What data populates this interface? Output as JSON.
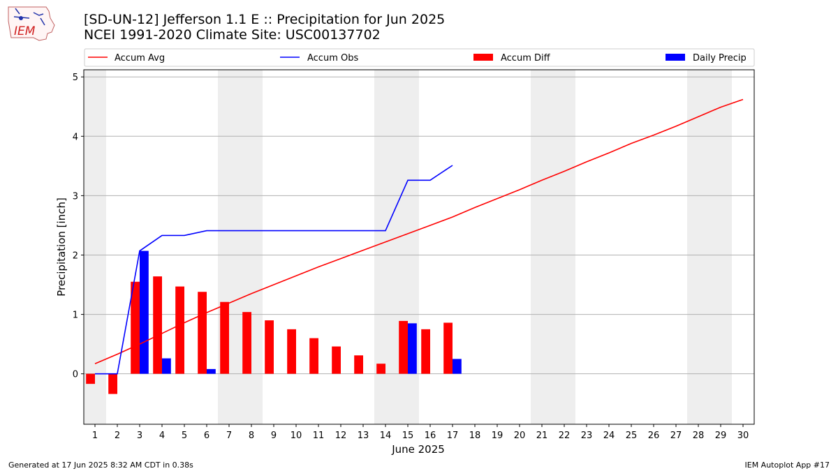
{
  "header": {
    "title_line1": "[SD-UN-12] Jefferson 1.1 E :: Precipitation for Jun 2025",
    "title_line2": "NCEI 1991-2020 Climate Site: USC00137702",
    "logo_text": "IEM"
  },
  "footer": {
    "left": "Generated at 17 Jun 2025 8:32 AM CDT in 0.38s",
    "right": "IEM Autoplot App #17"
  },
  "colors": {
    "avg": "#ff0000",
    "obs": "#0000ff",
    "diff": "#ff0000",
    "daily": "#0000ff",
    "weekend_shade": "#eeeeee",
    "grid": "#b0b0b0"
  },
  "chart_data": {
    "type": "bar",
    "xlabel": "June 2025",
    "ylabel": "Precipitation [inch]",
    "xlim": [
      0.5,
      30.5
    ],
    "ylim": [
      -0.85,
      5.12
    ],
    "yticks": [
      0,
      1,
      2,
      3,
      4,
      5
    ],
    "x": [
      1,
      2,
      3,
      4,
      5,
      6,
      7,
      8,
      9,
      10,
      11,
      12,
      13,
      14,
      15,
      16,
      17,
      18,
      19,
      20,
      21,
      22,
      23,
      24,
      25,
      26,
      27,
      28,
      29,
      30
    ],
    "xtick_labels": [
      "1",
      "2",
      "3",
      "4",
      "5",
      "6",
      "7",
      "8",
      "9",
      "10",
      "11",
      "12",
      "13",
      "14",
      "15",
      "16",
      "17",
      "18",
      "19",
      "20",
      "21",
      "22",
      "23",
      "24",
      "25",
      "26",
      "27",
      "28",
      "29",
      "30"
    ],
    "grid": true,
    "legend_placement": "top",
    "shaded_weekend_ranges": [
      [
        0.5,
        1.5
      ],
      [
        6.5,
        8.5
      ],
      [
        13.5,
        15.5
      ],
      [
        20.5,
        22.5
      ],
      [
        27.5,
        29.5
      ]
    ],
    "series": [
      {
        "name": "Accum Avg",
        "kind": "line",
        "color": "#ff0000",
        "x": [
          1,
          2,
          3,
          4,
          5,
          6,
          7,
          8,
          9,
          10,
          11,
          12,
          13,
          14,
          15,
          16,
          17,
          18,
          19,
          20,
          21,
          22,
          23,
          24,
          25,
          26,
          27,
          28,
          29,
          30
        ],
        "values": [
          0.17,
          0.33,
          0.5,
          0.68,
          0.86,
          1.03,
          1.19,
          1.35,
          1.5,
          1.65,
          1.8,
          1.94,
          2.08,
          2.22,
          2.36,
          2.5,
          2.64,
          2.8,
          2.95,
          3.1,
          3.26,
          3.41,
          3.57,
          3.72,
          3.88,
          4.02,
          4.17,
          4.33,
          4.49,
          4.62
        ]
      },
      {
        "name": "Accum Obs",
        "kind": "line",
        "color": "#0000ff",
        "x": [
          1,
          2,
          3,
          4,
          5,
          6,
          7,
          8,
          9,
          10,
          11,
          12,
          13,
          14,
          15,
          16,
          17
        ],
        "values": [
          0.0,
          0.0,
          2.07,
          2.33,
          2.33,
          2.41,
          2.41,
          2.41,
          2.41,
          2.41,
          2.41,
          2.41,
          2.41,
          2.41,
          3.26,
          3.26,
          3.51
        ]
      },
      {
        "name": "Accum Diff",
        "kind": "bar",
        "color": "#ff0000",
        "x": [
          1,
          2,
          3,
          4,
          5,
          6,
          7,
          8,
          9,
          10,
          11,
          12,
          13,
          14,
          15,
          16,
          17
        ],
        "values": [
          -0.17,
          -0.34,
          1.55,
          1.64,
          1.47,
          1.38,
          1.21,
          1.04,
          0.9,
          0.75,
          0.6,
          0.46,
          0.31,
          0.17,
          0.89,
          0.75,
          0.86
        ]
      },
      {
        "name": "Daily Precip",
        "kind": "bar",
        "color": "#0000ff",
        "x": [
          1,
          2,
          3,
          4,
          5,
          6,
          7,
          8,
          9,
          10,
          11,
          12,
          13,
          14,
          15,
          16,
          17
        ],
        "values": [
          0.0,
          0.0,
          2.07,
          0.26,
          0.0,
          0.08,
          0.0,
          0.0,
          0.0,
          0.0,
          0.0,
          0.0,
          0.0,
          0.0,
          0.85,
          0.0,
          0.25
        ]
      }
    ]
  }
}
